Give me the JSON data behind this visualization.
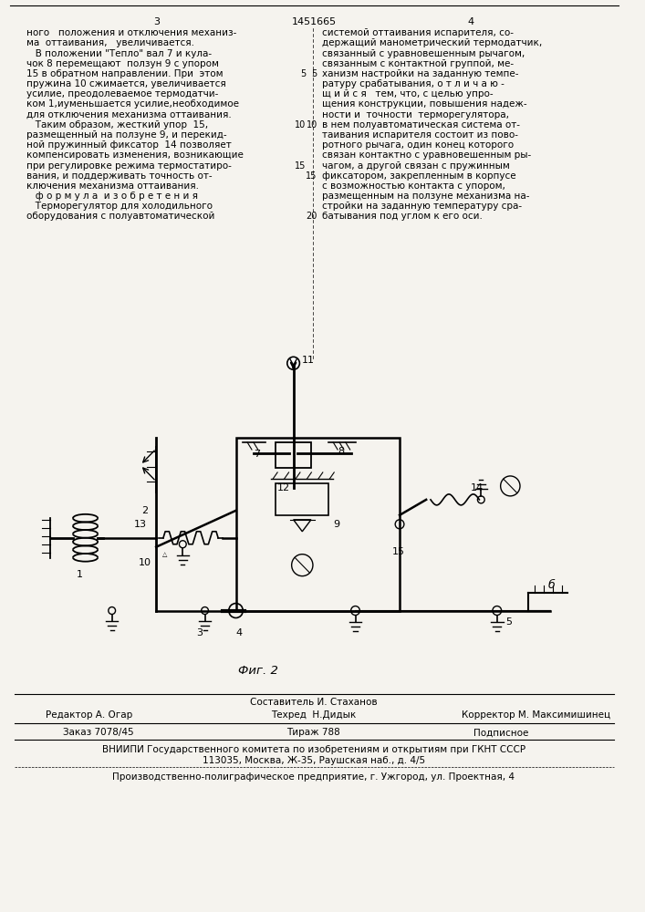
{
  "page_width": 7.07,
  "page_height": 10.0,
  "bg_color": "#f5f3ee",
  "patent_number": "1451665",
  "col_left_page": "3",
  "col_right_page": "4",
  "text_col_left": [
    "ного   положения и отключения механиз-",
    "ма  оттаивания,   увеличивается.",
    "   В положении \"Тепло\" вал 7 и кула-",
    "чок 8 перемещают  ползун 9 с упором",
    "15 в обратном направлении. При  этом",
    "пружина 10 сжимается, увеличивается",
    "усилие, преодолеваемое термодатчи-",
    "ком 1,иуменьшается усилие,необходимое",
    "для отключения механизма оттаивания.",
    "   Таким образом, жесткий упор  15,",
    "размещенный на ползуне 9, и перекид-",
    "ной пружинный фиксатор  14 позволяет",
    "компенсировать изменения, возникающие",
    "при регулировке режима термостатиро-",
    "вания, и поддерживать точность от-",
    "ключения механизма оттаивания.",
    "   ф о р м у л а  и з о б р е т е н и я",
    "   Терморегулятор для холодильного",
    "оборудования с полуавтоматической"
  ],
  "text_col_right": [
    "системой оттаивания испарителя, со-",
    "держащий манометрический термодатчик,",
    "связанный с уравновешенным рычагом,",
    "связанным с контактной группой, ме-",
    "ханизм настройки на заданную темпе-",
    "ратуру срабатывания, о т л и ч а ю -",
    "щ и й с я   тем, что, с целью упро-",
    "щения конструкции, повышения надеж-",
    "ности и  точности  терморегулятора,",
    "в нем полуавтоматическая система от-",
    "таивания испарителя состоит из пово-",
    "ротного рычага, один конец которого",
    "связан контактно с уравновешенным ры-",
    "чагом, а другой связан с пружинным",
    "фиксатором, закрепленным в корпусе",
    "с возможностью контакта с упором,",
    "размещенным на ползуне механизма на-",
    "стройки на заданную температуру сра-",
    "батывания под углом к его оси."
  ],
  "line_numbers": {
    "4": "5",
    "9": "10",
    "13": "15",
    "18": "20"
  },
  "fig_caption": "Фиг. 2",
  "footer_sostavitel": "Составитель И. Стаханов",
  "footer_editor": "Редактор А. Огар",
  "footer_tekhred": "Техред  Н.Дидык",
  "footer_korrektor": "Корректор М. Максимишинец",
  "footer_order": "Заказ 7078/45",
  "footer_tirazh": "Тираж 788",
  "footer_podpisnoe": "Подписное",
  "footer_vnipi": "ВНИИПИ Государственного комитета по изобретениям и открытиям при ГКНТ СССР",
  "footer_address": "113035, Москва, Ж-35, Раушская наб., д. 4/5",
  "footer_factory": "Производственно-полиграфическое предприятие, г. Ужгород, ул. Проектная, 4"
}
